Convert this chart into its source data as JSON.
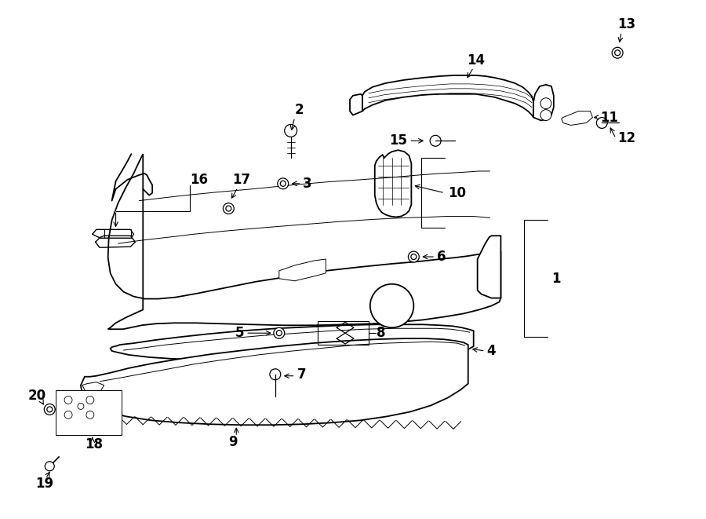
{
  "bg_color": "#ffffff",
  "line_color": "#000000",
  "fig_width": 9.0,
  "fig_height": 6.61,
  "dpi": 100,
  "lw_main": 1.3,
  "lw_thin": 0.7,
  "lw_thick": 1.8,
  "label_fontsize": 12,
  "label_fontweight": "bold"
}
